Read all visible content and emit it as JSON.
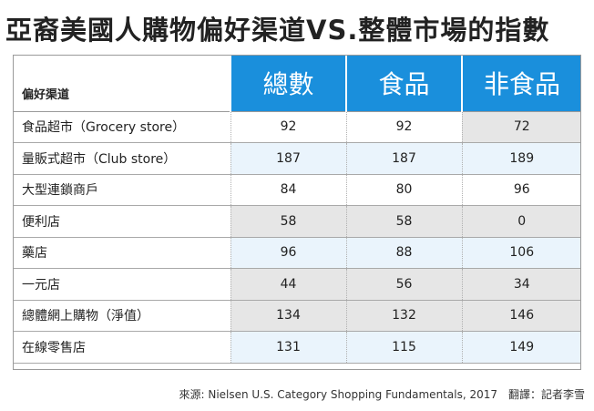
{
  "title": "亞裔美國人購物偏好渠道VS.整體市場的指數",
  "chart_data": {
    "type": "table",
    "corner_label": "偏好渠道",
    "columns": [
      "總數",
      "食品",
      "非食品"
    ],
    "rows": [
      {
        "label": "食品超市（Grocery store）",
        "values": [
          "92",
          "92",
          "72"
        ]
      },
      {
        "label": "量販式超市（Club store）",
        "values": [
          "187",
          "187",
          "189"
        ]
      },
      {
        "label": "大型連鎖商戶",
        "values": [
          "84",
          "80",
          "96"
        ]
      },
      {
        "label": "便利店",
        "values": [
          "58",
          "58",
          "0"
        ]
      },
      {
        "label": "藥店",
        "values": [
          "96",
          "88",
          "106"
        ]
      },
      {
        "label": "一元店",
        "values": [
          "44",
          "56",
          "34"
        ]
      },
      {
        "label": "總體網上購物（淨值）",
        "values": [
          "134",
          "132",
          "146"
        ]
      },
      {
        "label": "在線零售店",
        "values": [
          "131",
          "115",
          "149"
        ]
      }
    ]
  },
  "source": "來源: Nielsen U.S. Category Shopping Fundamentals, 2017　翻譯：記者李雪",
  "colors": {
    "header_blue": "#1a8fdc",
    "shade_blue": "#eaf4fc",
    "shade_grey": "#e6e6e6"
  }
}
